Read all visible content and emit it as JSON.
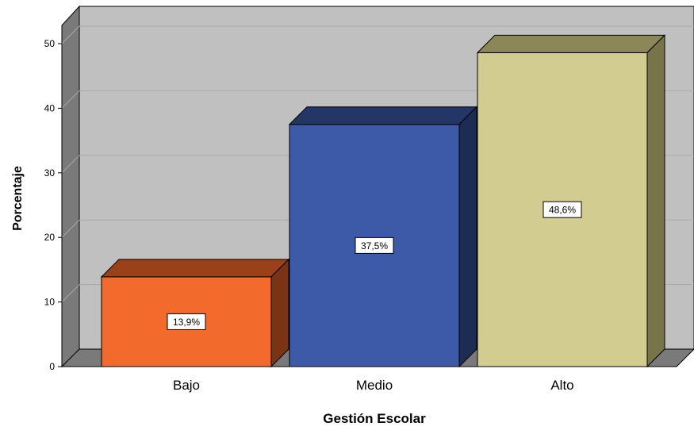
{
  "chart_data": {
    "type": "bar",
    "three_d": true,
    "xlabel": "Gestión Escolar",
    "ylabel": "Porcentaje",
    "categories": [
      "Bajo",
      "Medio",
      "Alto"
    ],
    "values": [
      13.9,
      37.5,
      48.6
    ],
    "data_labels": [
      "13,9%",
      "37,5%",
      "48,6%"
    ],
    "ylim": [
      0,
      50
    ],
    "yticks": [
      0,
      10,
      20,
      30,
      40,
      50
    ],
    "grid": true,
    "colors": {
      "bars": [
        "#f26a2c",
        "#3d5aa9",
        "#d3cc91"
      ],
      "bar_tops": [
        "#9a4119",
        "#243666",
        "#8b8758"
      ],
      "bar_sides": [
        "#7a3414",
        "#1d2c55",
        "#78744a"
      ],
      "plot_background": "#c0c0c0",
      "plot_wall": "#7a7a7a",
      "gridline": "#a9a9a9"
    }
  }
}
